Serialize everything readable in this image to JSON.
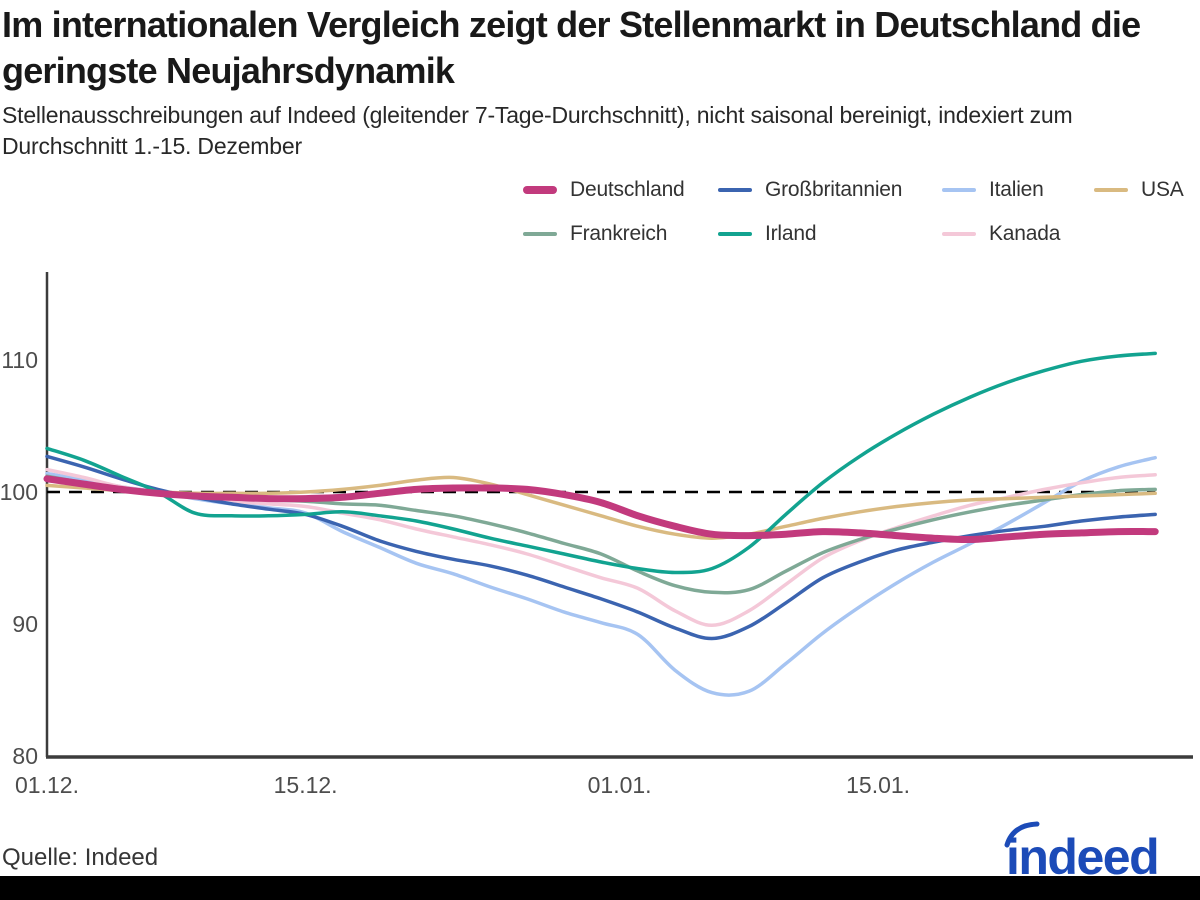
{
  "title": "Im internationalen Vergleich zeigt der Stellenmarkt in Deutschland die geringste Neujahrsdynamik",
  "subtitle": "Stellenausschreibungen auf Indeed (gleitender 7-Tage-Durchschnitt), nicht saisonal bereinigt, indexiert zum Durchschnitt 1.-15. Dezember",
  "source": "Quelle: Indeed",
  "logo": {
    "text": "indeed",
    "color": "#1c4bb8"
  },
  "chart_data": {
    "type": "line",
    "x_unit": "Tage ab 01.12.",
    "x": [
      0,
      2,
      4,
      6,
      8,
      10,
      12,
      14,
      16,
      18,
      20,
      22,
      24,
      26,
      28,
      30,
      32,
      34,
      36,
      38,
      40,
      42,
      44,
      46,
      48,
      50,
      52,
      54,
      56,
      58,
      60
    ],
    "series": [
      {
        "name": "Deutschland",
        "color": "#c23a7d",
        "emphasis": true,
        "values": [
          101.0,
          100.6,
          100.2,
          99.9,
          99.7,
          99.6,
          99.5,
          99.5,
          99.6,
          99.9,
          100.2,
          100.3,
          100.3,
          100.2,
          99.8,
          99.2,
          98.2,
          97.4,
          96.8,
          96.7,
          96.8,
          97.0,
          96.9,
          96.7,
          96.5,
          96.4,
          96.6,
          96.8,
          96.9,
          97.0,
          97.0
        ]
      },
      {
        "name": "Großbritannien",
        "color": "#3b64b0",
        "emphasis": false,
        "values": [
          102.7,
          101.9,
          101.0,
          100.2,
          99.6,
          99.1,
          98.7,
          98.3,
          97.4,
          96.3,
          95.5,
          94.9,
          94.4,
          93.7,
          92.8,
          91.9,
          90.9,
          89.7,
          88.9,
          89.8,
          91.6,
          93.5,
          94.7,
          95.6,
          96.2,
          96.7,
          97.1,
          97.4,
          97.8,
          98.1,
          98.3
        ]
      },
      {
        "name": "Italien",
        "color": "#a6c4f2",
        "emphasis": false,
        "values": [
          101.4,
          100.9,
          100.4,
          100.0,
          99.5,
          99.1,
          98.8,
          98.4,
          97.0,
          95.8,
          94.6,
          93.8,
          92.8,
          91.9,
          90.9,
          90.1,
          89.2,
          86.5,
          84.8,
          84.9,
          87.0,
          89.3,
          91.3,
          93.1,
          94.7,
          96.1,
          97.6,
          99.2,
          100.8,
          101.9,
          102.6
        ]
      },
      {
        "name": "USA",
        "color": "#d9ba81",
        "emphasis": false,
        "values": [
          100.5,
          100.3,
          100.1,
          100.0,
          99.9,
          99.9,
          99.9,
          100.0,
          100.2,
          100.5,
          100.9,
          101.1,
          100.6,
          99.8,
          99.0,
          98.2,
          97.4,
          96.8,
          96.5,
          96.8,
          97.4,
          98.0,
          98.5,
          98.9,
          99.2,
          99.4,
          99.5,
          99.6,
          99.7,
          99.8,
          99.9
        ]
      },
      {
        "name": "Frankreich",
        "color": "#7fa996",
        "emphasis": false,
        "values": [
          101.2,
          100.7,
          100.2,
          99.9,
          99.7,
          99.5,
          99.4,
          99.3,
          99.1,
          99.0,
          98.6,
          98.2,
          97.6,
          96.9,
          96.1,
          95.3,
          94.0,
          92.9,
          92.4,
          92.6,
          94.0,
          95.4,
          96.4,
          97.2,
          97.9,
          98.5,
          99.0,
          99.4,
          99.8,
          100.1,
          100.2
        ]
      },
      {
        "name": "Irland",
        "color": "#12a390",
        "emphasis": false,
        "values": [
          103.3,
          102.4,
          101.2,
          100.0,
          98.4,
          98.2,
          98.2,
          98.3,
          98.5,
          98.2,
          97.8,
          97.2,
          96.5,
          95.9,
          95.3,
          94.7,
          94.2,
          93.9,
          94.2,
          95.8,
          98.3,
          100.7,
          102.7,
          104.4,
          105.9,
          107.2,
          108.3,
          109.2,
          109.9,
          110.3,
          110.5
        ]
      },
      {
        "name": "Kanada",
        "color": "#f4c8d8",
        "emphasis": false,
        "values": [
          101.7,
          101.1,
          100.4,
          100.0,
          99.6,
          99.3,
          99.1,
          98.9,
          98.4,
          97.9,
          97.2,
          96.6,
          96.0,
          95.3,
          94.4,
          93.5,
          92.7,
          91.0,
          89.9,
          91.0,
          93.0,
          95.0,
          96.3,
          97.3,
          98.2,
          99.0,
          99.6,
          100.2,
          100.7,
          101.1,
          101.3
        ]
      }
    ],
    "legend_rows": [
      [
        0,
        1,
        2,
        3
      ],
      [
        4,
        5,
        6
      ]
    ],
    "reference_line": {
      "value": 100,
      "style": "dashed",
      "color": "#000000"
    },
    "yticks": [
      80,
      90,
      100,
      110
    ],
    "ylim": [
      80,
      116
    ],
    "xticks": [
      {
        "label": "01.12.",
        "day": 0
      },
      {
        "label": "15.12.",
        "day": 14
      },
      {
        "label": "01.01.",
        "day": 31
      },
      {
        "label": "15.01.",
        "day": 45
      }
    ],
    "grid": "off",
    "legend_position": "top",
    "axis_color": "#3c3c3c",
    "tick_label_color": "#4d4d4d"
  }
}
